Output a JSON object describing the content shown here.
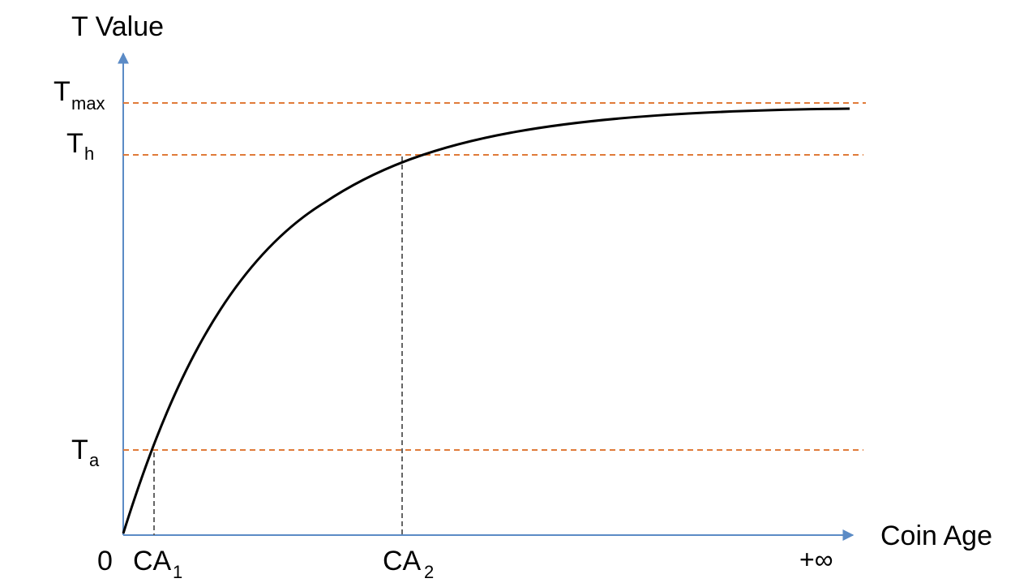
{
  "axes": {
    "y_label": "T Value",
    "x_label": "Coin Age",
    "origin_label": "0",
    "infinity_label": "+∞"
  },
  "y_markers": [
    {
      "id": "tmax",
      "base": "T",
      "sub": "max"
    },
    {
      "id": "th",
      "base": "T",
      "sub": "h"
    },
    {
      "id": "ta",
      "base": "T",
      "sub": "a"
    }
  ],
  "x_markers": [
    {
      "id": "ca1",
      "base": "CA",
      "sub": "1"
    },
    {
      "id": "ca2",
      "base": "CA",
      "sub": "2"
    }
  ],
  "colors": {
    "axis": "#5b8bc6",
    "reference_line": "#e07b39",
    "drop_line": "#666666",
    "curve": "#000000"
  }
}
